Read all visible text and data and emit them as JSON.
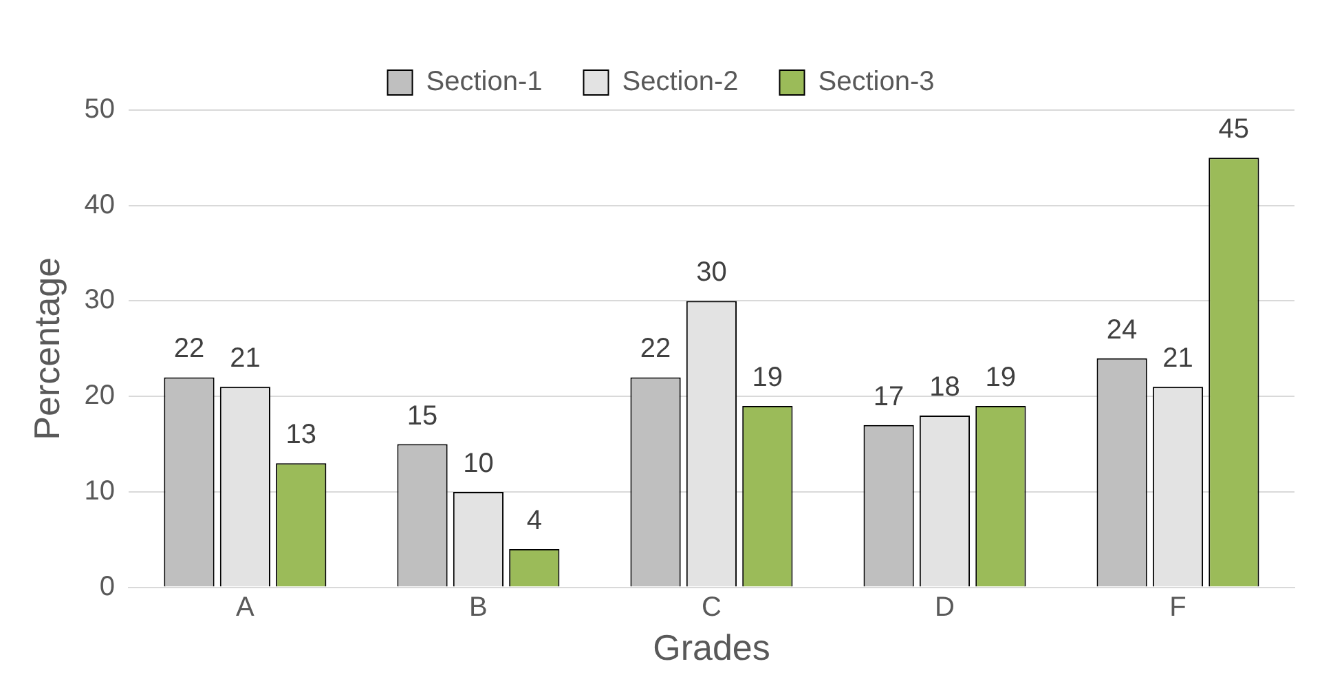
{
  "chart_data": {
    "type": "bar",
    "xlabel": "Grades",
    "ylabel": "Percentage",
    "categories": [
      "A",
      "B",
      "C",
      "D",
      "F"
    ],
    "series": [
      {
        "name": "Section-1",
        "color": "#bfbfbf",
        "values": [
          22,
          15,
          22,
          17,
          24
        ]
      },
      {
        "name": "Section-2",
        "color": "#e3e3e3",
        "values": [
          21,
          10,
          30,
          18,
          21
        ]
      },
      {
        "name": "Section-3",
        "color": "#9bbb59",
        "values": [
          13,
          4,
          19,
          19,
          45
        ]
      }
    ],
    "ylim": [
      0,
      50
    ],
    "yticks": [
      0,
      10,
      20,
      30,
      40,
      50
    ],
    "grid": "y",
    "legend": "top",
    "data_labels": true
  }
}
